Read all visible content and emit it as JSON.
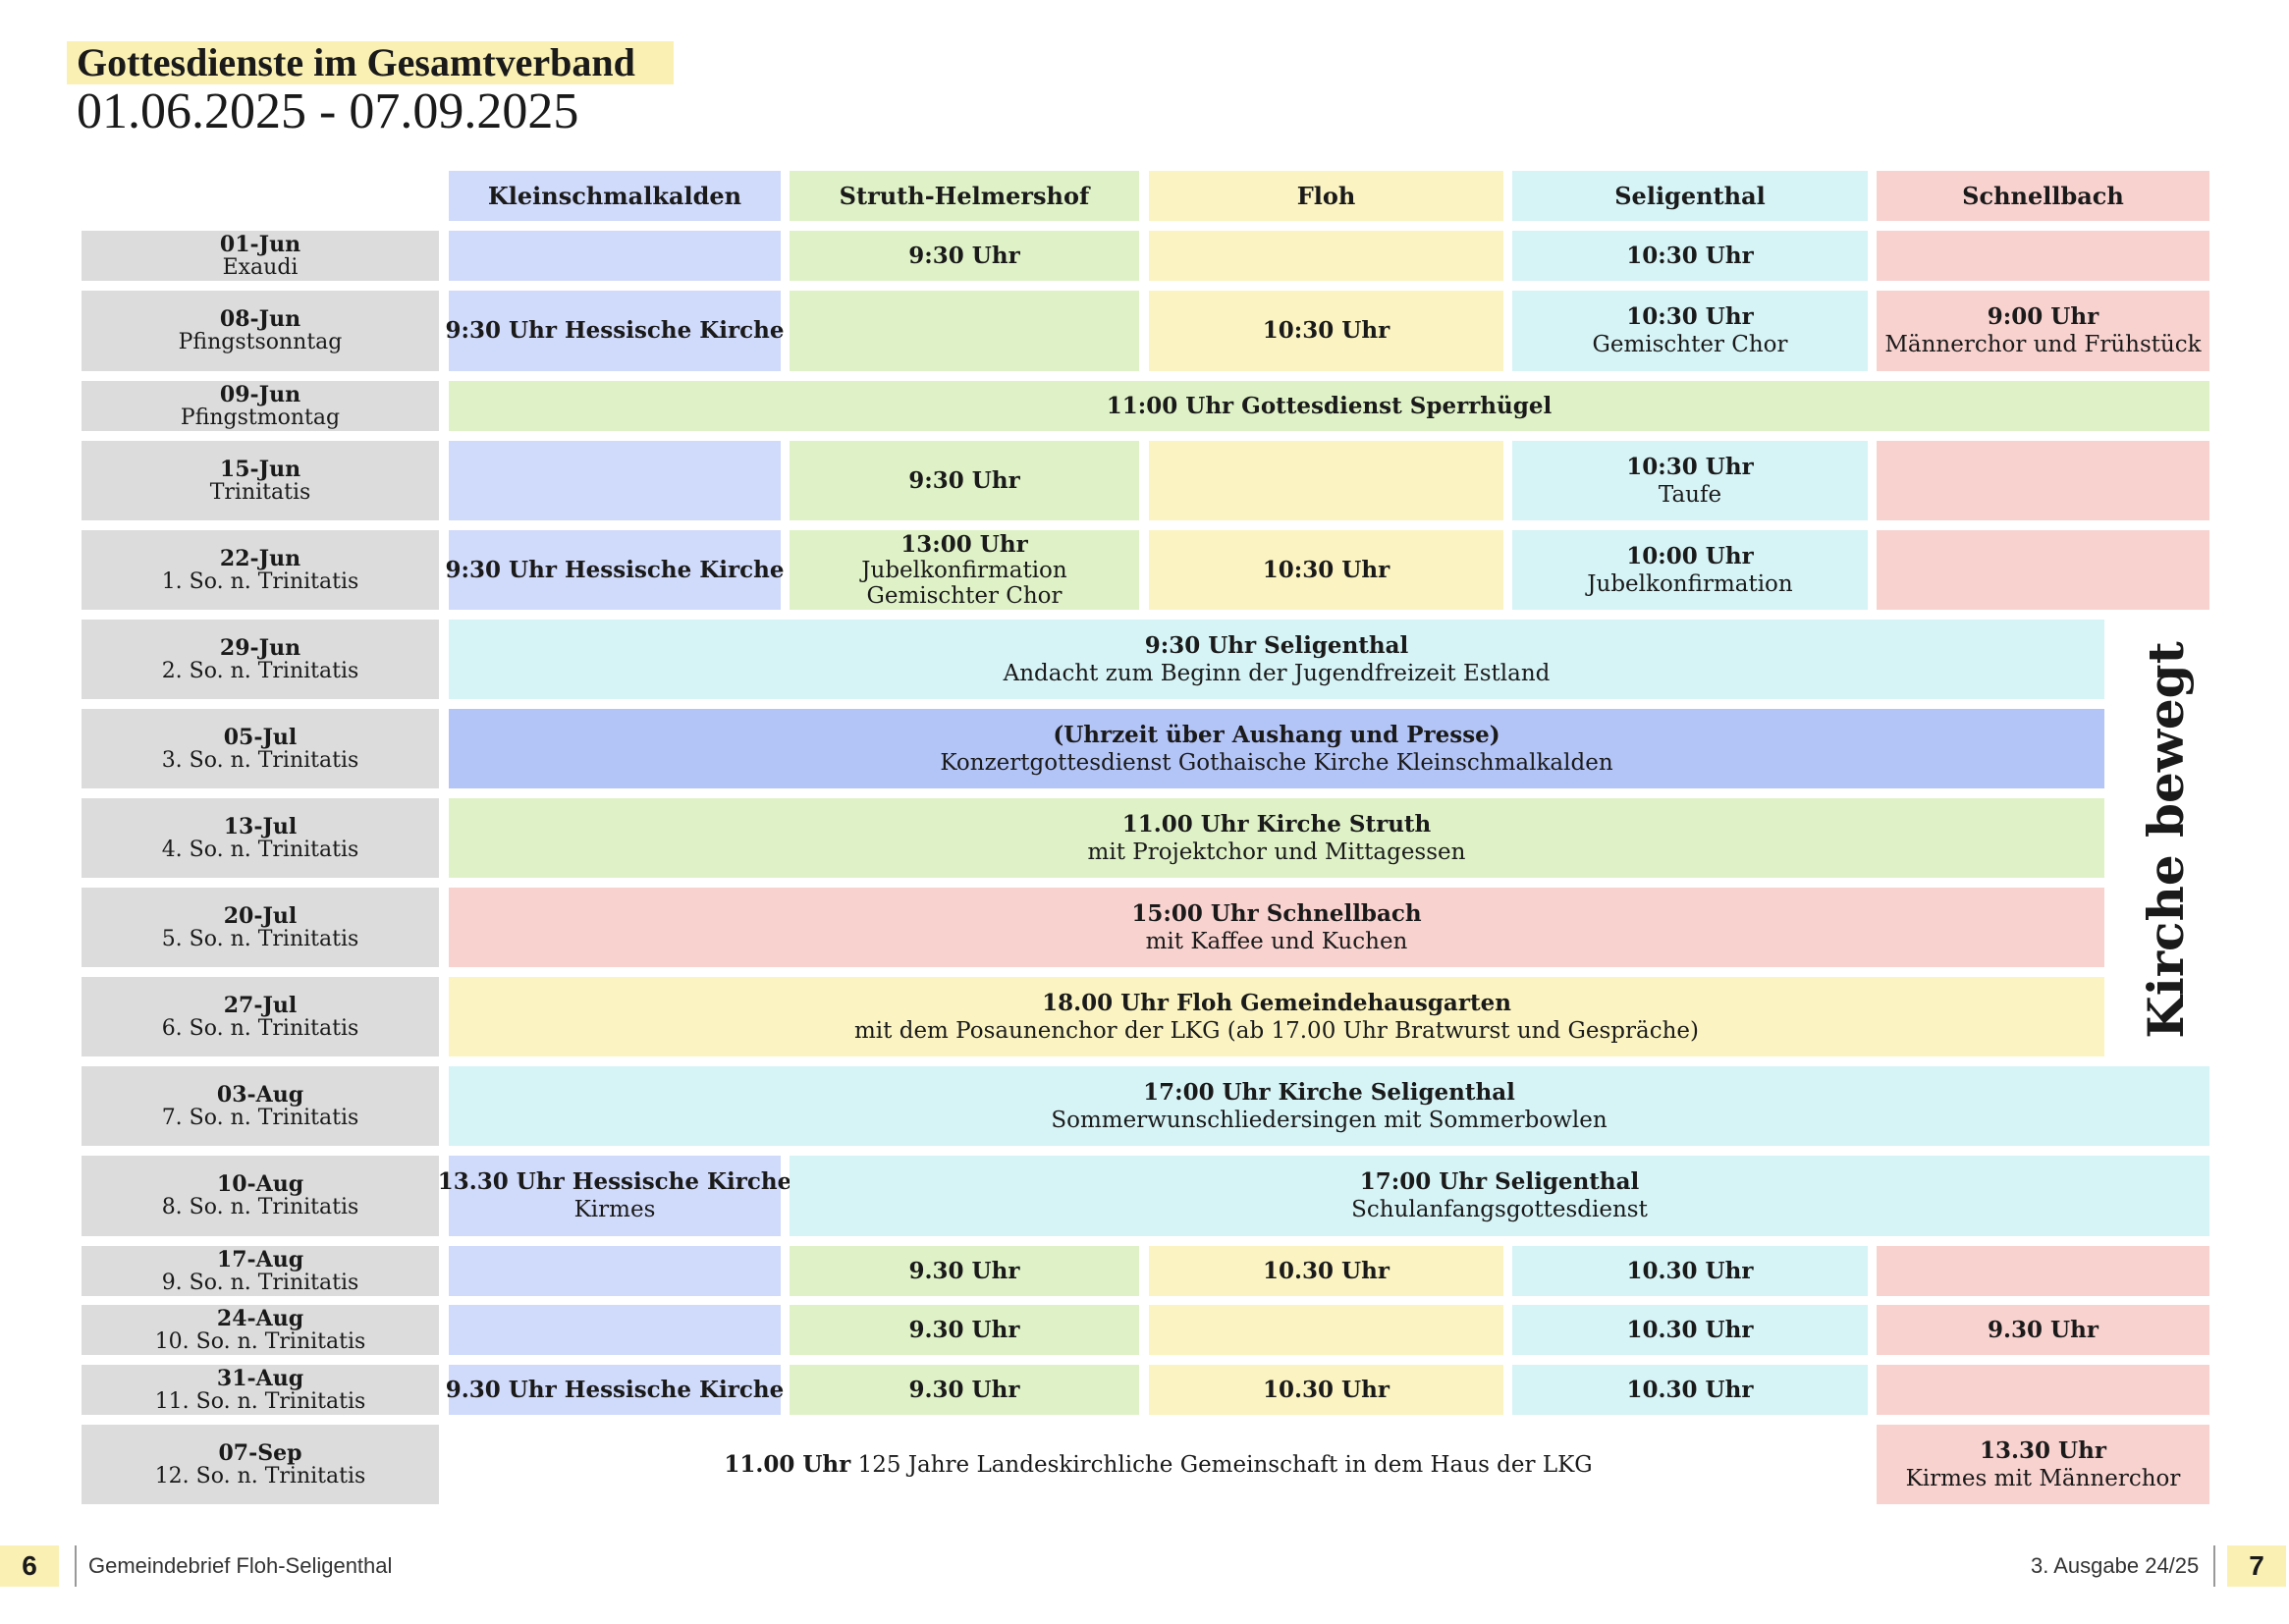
{
  "header": {
    "title": "Gottesdienste im Gesamtverband",
    "date_range": "01.06.2025 - 07.09.2025"
  },
  "columns": [
    "Kleinschmalkalden",
    "Struth-Helmershof",
    "Floh",
    "Seligenthal",
    "Schnellbach"
  ],
  "rows": [
    {
      "date": "01-Jun",
      "day": "Exaudi"
    },
    {
      "date": "08-Jun",
      "day": "Pfingstsonntag"
    },
    {
      "date": "09-Jun",
      "day": "Pfingstmontag"
    },
    {
      "date": "15-Jun",
      "day": "Trinitatis"
    },
    {
      "date": "22-Jun",
      "day": "1. So. n. Trinitatis"
    },
    {
      "date": "29-Jun",
      "day": "2. So. n. Trinitatis"
    },
    {
      "date": "05-Jul",
      "day": "3. So. n. Trinitatis"
    },
    {
      "date": "13-Jul",
      "day": "4. So. n. Trinitatis"
    },
    {
      "date": "20-Jul",
      "day": "5. So. n. Trinitatis"
    },
    {
      "date": "27-Jul",
      "day": "6. So. n. Trinitatis"
    },
    {
      "date": "03-Aug",
      "day": "7. So. n. Trinitatis"
    },
    {
      "date": "10-Aug",
      "day": "8. So. n. Trinitatis"
    },
    {
      "date": "17-Aug",
      "day": "9. So. n. Trinitatis"
    },
    {
      "date": "24-Aug",
      "day": "10. So. n. Trinitatis"
    },
    {
      "date": "31-Aug",
      "day": "11. So. n. Trinitatis"
    },
    {
      "date": "07-Sep",
      "day": "12. So. n. Trinitatis"
    }
  ],
  "entries": {
    "r01_struth": "9:30 Uhr",
    "r01_seligenthal": "10:30 Uhr",
    "r02_klein": "9:30 Uhr Hessische Kirche",
    "r02_floh": "10:30 Uhr",
    "r02_seligenthal_time": "10:30 Uhr",
    "r02_seligenthal_note": "Gemischter Chor",
    "r02_schnell_time": "9:00 Uhr",
    "r02_schnell_note": "Männerchor und Frühstück",
    "r03_all": "11:00 Uhr Gottesdienst Sperrhügel",
    "r04_struth": "9:30 Uhr",
    "r04_seligenthal_time": "10:30 Uhr",
    "r04_seligenthal_note": "Taufe",
    "r05_klein": "9:30 Uhr Hessische Kirche",
    "r05_struth_time": "13:00 Uhr",
    "r05_struth_note1": "Jubelkonfirmation",
    "r05_struth_note2": "Gemischter Chor",
    "r05_floh": "10:30 Uhr",
    "r05_seligenthal_time": "10:00 Uhr",
    "r05_seligenthal_note": "Jubelkonfirmation",
    "r06_time": "9:30 Uhr Seligenthal",
    "r06_note": "Andacht zum Beginn der Jugendfreizeit Estland",
    "r07_time": "(Uhrzeit über Aushang und Presse)",
    "r07_note": "Konzertgottesdienst Gothaische Kirche Kleinschmalkalden",
    "r08_time": "11.00 Uhr Kirche Struth",
    "r08_note": "mit Projektchor und Mittagessen",
    "r09_time": "15:00 Uhr Schnellbach",
    "r09_note": "mit Kaffee und Kuchen",
    "r10_time": "18.00 Uhr Floh Gemeindehausgarten",
    "r10_note": "mit dem Posaunenchor der LKG (ab 17.00 Uhr Bratwurst und Gespräche)",
    "r11_time": "17:00 Uhr Kirche Seligenthal",
    "r11_note": "Sommerwunschliedersingen mit Sommerbowlen",
    "r12_klein_time": "13.30 Uhr Hessische Kirche",
    "r12_klein_note": "Kirmes",
    "r12_rest_time": "17:00 Uhr Seligenthal",
    "r12_rest_note": "Schulanfangsgottesdienst",
    "r13_struth": "9.30 Uhr",
    "r13_floh": "10.30 Uhr",
    "r13_seligenthal": "10.30 Uhr",
    "r14_struth": "9.30 Uhr",
    "r14_seligenthal": "10.30 Uhr",
    "r14_schnell": "9.30 Uhr",
    "r15_klein": "9.30 Uhr Hessische Kirche",
    "r15_struth": "9.30 Uhr",
    "r15_floh": "10.30 Uhr",
    "r15_seligenthal": "10.30 Uhr",
    "r16_time": "11.00 Uhr",
    "r16_note": " 125 Jahre Landeskirchliche Gemeinschaft in dem Haus der LKG",
    "r16_schnell_time": "13.30 Uhr",
    "r16_schnell_note": "Kirmes mit Männerchor"
  },
  "side_label": "Kirche bewegt",
  "footer": {
    "left_page": "6",
    "left_text": "Gemeindebrief Floh-Seligenthal",
    "right_text": "3. Ausgabe 24/25",
    "right_page": "7"
  },
  "colors": {
    "kleinschmalkalden": "#d0dafa",
    "struth_helmershof": "#dff2c7",
    "floh": "#fbf4c2",
    "seligenthal": "#d6f3f6",
    "schnellbach": "#f8d2cf",
    "date_column": "#dcdcdc",
    "title_highlight": "#faf0b4"
  }
}
